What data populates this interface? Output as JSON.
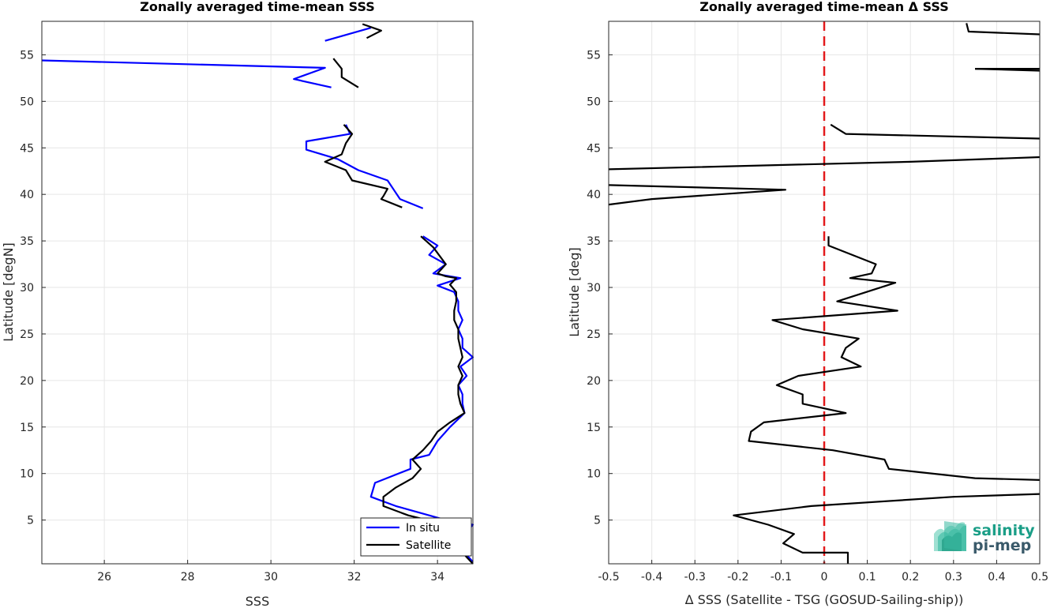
{
  "chart_data": [
    {
      "type": "line",
      "title": "Zonally averaged time-mean SSS",
      "xlabel": "SSS",
      "ylabel": "Latitude [degN]",
      "xlim": [
        24.5,
        34.85
      ],
      "ylim": [
        0.3,
        58.6
      ],
      "xticks": [
        26,
        28,
        30,
        32,
        34
      ],
      "yticks": [
        5,
        10,
        15,
        20,
        25,
        30,
        35,
        40,
        45,
        50,
        55
      ],
      "grid": true,
      "legend": "bottom-right",
      "series": [
        {
          "name": "In situ",
          "color": "#0000ff",
          "segments": [
            [
              [
                32.4,
                57.9
              ],
              [
                31.3,
                56.5
              ]
            ],
            [
              [
                24.5,
                54.4
              ],
              [
                31.3,
                53.6
              ],
              [
                30.55,
                52.4
              ],
              [
                31.45,
                51.5
              ]
            ],
            [
              [
                31.8,
                47.5
              ],
              [
                31.9,
                46.5
              ],
              [
                30.85,
                45.7
              ],
              [
                30.85,
                44.8
              ],
              [
                31.6,
                43.8
              ],
              [
                32.1,
                42.6
              ],
              [
                32.8,
                41.5
              ],
              [
                32.95,
                40.5
              ],
              [
                33.1,
                39.5
              ],
              [
                33.65,
                38.5
              ]
            ],
            [
              [
                33.65,
                35.5
              ],
              [
                34.0,
                34.5
              ],
              [
                33.8,
                33.5
              ],
              [
                34.2,
                32.5
              ],
              [
                33.9,
                31.5
              ],
              [
                34.55,
                31.0
              ],
              [
                34.0,
                30.2
              ],
              [
                34.4,
                29.5
              ],
              [
                34.5,
                28.5
              ],
              [
                34.5,
                27.5
              ],
              [
                34.6,
                26.5
              ],
              [
                34.5,
                25.5
              ],
              [
                34.6,
                24.5
              ],
              [
                34.6,
                23.5
              ],
              [
                34.85,
                22.5
              ],
              [
                34.55,
                21.5
              ],
              [
                34.7,
                20.5
              ],
              [
                34.5,
                19.5
              ],
              [
                34.6,
                18.5
              ],
              [
                34.6,
                17.5
              ],
              [
                34.65,
                16.5
              ],
              [
                34.3,
                15.0
              ],
              [
                34.0,
                13.5
              ],
              [
                33.8,
                12.0
              ],
              [
                33.35,
                11.5
              ],
              [
                33.35,
                10.5
              ],
              [
                32.5,
                9.0
              ],
              [
                32.4,
                7.5
              ],
              [
                33.0,
                6.5
              ],
              [
                34.2,
                5.0
              ],
              [
                34.85,
                4.5
              ],
              [
                34.65,
                3.5
              ],
              [
                34.65,
                1.5
              ],
              [
                34.85,
                0.5
              ]
            ]
          ]
        },
        {
          "name": "Satellite",
          "color": "#000000",
          "segments": [
            [
              [
                32.2,
                58.3
              ],
              [
                32.65,
                57.6
              ],
              [
                32.3,
                56.8
              ]
            ],
            [
              [
                31.5,
                54.6
              ],
              [
                31.7,
                53.5
              ],
              [
                31.7,
                52.6
              ],
              [
                32.1,
                51.5
              ]
            ],
            [
              [
                31.75,
                47.5
              ],
              [
                31.95,
                46.5
              ],
              [
                31.8,
                45.5
              ],
              [
                31.7,
                44.3
              ],
              [
                31.3,
                43.5
              ],
              [
                31.8,
                42.6
              ],
              [
                31.95,
                41.5
              ],
              [
                32.8,
                40.6
              ],
              [
                32.7,
                39.8
              ],
              [
                32.65,
                39.5
              ],
              [
                33.15,
                38.6
              ]
            ],
            [
              [
                33.6,
                35.5
              ],
              [
                33.9,
                34.3
              ],
              [
                34.2,
                32.5
              ],
              [
                34.0,
                31.5
              ],
              [
                34.2,
                31.2
              ],
              [
                34.45,
                31.0
              ],
              [
                34.3,
                30.3
              ],
              [
                34.45,
                29.5
              ],
              [
                34.45,
                28.5
              ],
              [
                34.4,
                27.5
              ],
              [
                34.4,
                26.5
              ],
              [
                34.5,
                25.5
              ],
              [
                34.5,
                24.5
              ],
              [
                34.6,
                22.5
              ],
              [
                34.5,
                21.5
              ],
              [
                34.6,
                20.5
              ],
              [
                34.5,
                19.5
              ],
              [
                34.5,
                18.5
              ],
              [
                34.55,
                17.5
              ],
              [
                34.65,
                16.5
              ],
              [
                34.3,
                15.5
              ],
              [
                34.0,
                14.5
              ],
              [
                33.85,
                13.5
              ],
              [
                33.65,
                12.5
              ],
              [
                33.4,
                11.5
              ],
              [
                33.6,
                10.5
              ],
              [
                33.4,
                9.5
              ],
              [
                33.0,
                8.5
              ],
              [
                32.7,
                7.5
              ],
              [
                32.7,
                6.5
              ],
              [
                33.3,
                5.5
              ],
              [
                34.2,
                4.5
              ],
              [
                34.5,
                3.5
              ],
              [
                34.4,
                2.5
              ],
              [
                34.6,
                1.5
              ],
              [
                34.85,
                0.3
              ]
            ]
          ]
        }
      ]
    },
    {
      "type": "line",
      "title": "Zonally averaged time-mean Δ SSS",
      "xlabel": "Δ SSS (Satellite - TSG (GOSUD-Sailing-ship))",
      "ylabel": "Latitude [deg]",
      "xlim": [
        -0.5,
        0.5
      ],
      "ylim": [
        0.3,
        58.6
      ],
      "xticks": [
        -0.5,
        -0.4,
        -0.3,
        -0.2,
        -0.1,
        0,
        0.1,
        0.2,
        0.3,
        0.4,
        0.5
      ],
      "yticks": [
        5,
        10,
        15,
        20,
        25,
        30,
        35,
        40,
        45,
        50,
        55
      ],
      "grid": true,
      "reference_line": {
        "x": 0,
        "color": "#e31a1c",
        "style": "dashed"
      },
      "series": [
        {
          "name": "",
          "color": "#000000",
          "segments": [
            [
              [
                0.33,
                58.4
              ],
              [
                0.335,
                57.5
              ],
              [
                0.5,
                57.2
              ]
            ],
            [
              [
                0.35,
                53.5
              ],
              [
                0.5,
                53.5
              ]
            ],
            [
              [
                0.35,
                53.5
              ],
              [
                0.5,
                53.3
              ]
            ],
            [
              [
                0.015,
                47.5
              ],
              [
                0.05,
                46.5
              ],
              [
                0.5,
                46.0
              ]
            ],
            [
              [
                0.5,
                44.0
              ],
              [
                0.2,
                43.5
              ],
              [
                -0.5,
                42.7
              ]
            ],
            [
              [
                -0.5,
                41.0
              ],
              [
                -0.09,
                40.5
              ],
              [
                -0.4,
                39.5
              ],
              [
                -0.5,
                38.9
              ]
            ],
            [
              [
                0.01,
                35.5
              ],
              [
                0.01,
                34.5
              ],
              [
                0.12,
                32.5
              ],
              [
                0.11,
                31.5
              ],
              [
                0.06,
                31.0
              ],
              [
                0.165,
                30.5
              ],
              [
                0.03,
                28.5
              ],
              [
                0.17,
                27.5
              ],
              [
                -0.12,
                26.5
              ],
              [
                -0.05,
                25.5
              ],
              [
                0.08,
                24.5
              ],
              [
                0.05,
                23.5
              ],
              [
                0.04,
                22.5
              ],
              [
                0.085,
                21.5
              ],
              [
                -0.06,
                20.5
              ],
              [
                -0.11,
                19.5
              ],
              [
                -0.05,
                18.5
              ],
              [
                -0.05,
                17.5
              ],
              [
                0.05,
                16.5
              ],
              [
                -0.14,
                15.5
              ],
              [
                -0.17,
                14.5
              ],
              [
                -0.175,
                13.5
              ],
              [
                0.02,
                12.5
              ],
              [
                0.14,
                11.5
              ],
              [
                0.15,
                10.5
              ],
              [
                0.35,
                9.5
              ],
              [
                0.5,
                9.3
              ]
            ],
            [
              [
                0.5,
                7.8
              ],
              [
                0.3,
                7.5
              ],
              [
                -0.03,
                6.5
              ],
              [
                -0.21,
                5.5
              ],
              [
                -0.13,
                4.5
              ],
              [
                -0.07,
                3.5
              ],
              [
                -0.095,
                2.5
              ],
              [
                -0.05,
                1.5
              ],
              [
                0.055,
                1.5
              ],
              [
                0.055,
                0.3
              ]
            ]
          ]
        }
      ]
    }
  ],
  "logo": {
    "line1": "salinity",
    "line2": "pi-mep"
  }
}
